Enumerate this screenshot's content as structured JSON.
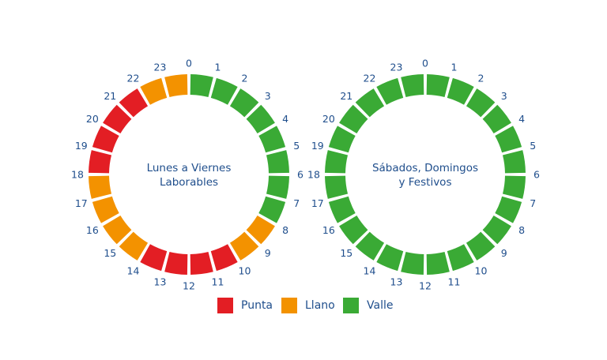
{
  "colors": {
    "punta": "#e31e24",
    "llano": "#f39200",
    "valle": "#3aaa35",
    "text": "#1f4e8c"
  },
  "hours": [
    "0",
    "1",
    "2",
    "3",
    "4",
    "5",
    "6",
    "7",
    "8",
    "9",
    "10",
    "11",
    "12",
    "13",
    "14",
    "15",
    "16",
    "17",
    "18",
    "19",
    "20",
    "21",
    "22",
    "23"
  ],
  "clocks": [
    {
      "title_lines": [
        "Lunes a Viernes",
        "Laborables"
      ],
      "segments": [
        "valle",
        "valle",
        "valle",
        "valle",
        "valle",
        "valle",
        "valle",
        "valle",
        "llano",
        "llano",
        "punta",
        "punta",
        "punta",
        "punta",
        "llano",
        "llano",
        "llano",
        "llano",
        "punta",
        "punta",
        "punta",
        "punta",
        "llano",
        "llano"
      ]
    },
    {
      "title_lines": [
        "Sábados, Domingos",
        "y Festivos"
      ],
      "segments": [
        "valle",
        "valle",
        "valle",
        "valle",
        "valle",
        "valle",
        "valle",
        "valle",
        "valle",
        "valle",
        "valle",
        "valle",
        "valle",
        "valle",
        "valle",
        "valle",
        "valle",
        "valle",
        "valle",
        "valle",
        "valle",
        "valle",
        "valle",
        "valle"
      ]
    }
  ],
  "legend": [
    {
      "key": "punta",
      "label": "Punta"
    },
    {
      "key": "llano",
      "label": "Llano"
    },
    {
      "key": "valle",
      "label": "Valle"
    }
  ]
}
